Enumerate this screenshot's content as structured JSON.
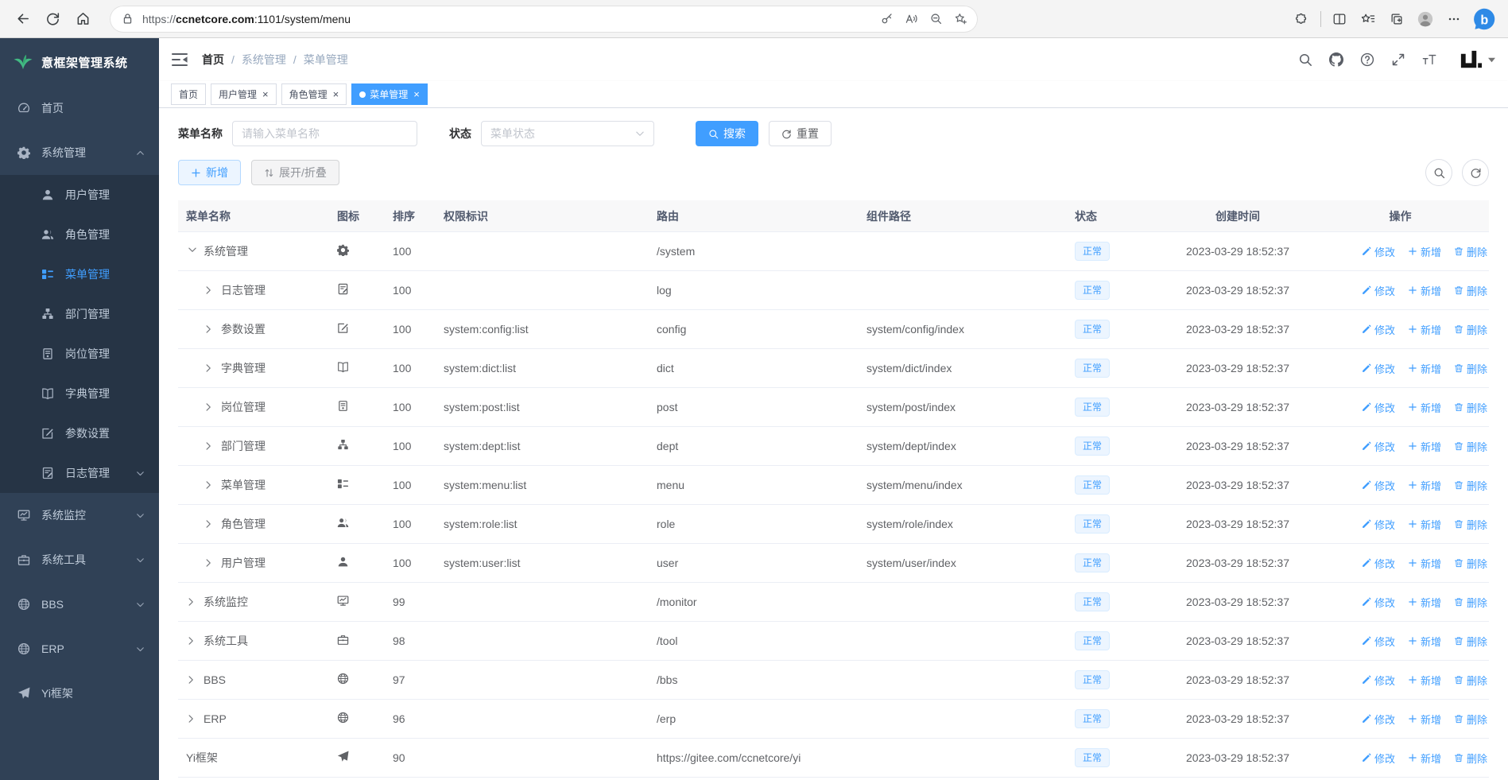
{
  "browser": {
    "url_scheme": "https://",
    "url_host": "ccnetcore.com",
    "url_path": ":1101/system/menu",
    "left_icons": [
      "back-icon",
      "refresh-icon",
      "home-icon"
    ],
    "lock_icon": "lock-icon",
    "url_icons": [
      "key-icon",
      "read-aloud-icon",
      "zoom-out-icon",
      "favorite-add-icon"
    ],
    "right_icons": [
      "extensions-icon",
      "divider",
      "split-screen-icon",
      "favorites-icon",
      "collections-icon",
      "profile-avatar",
      "more-icon"
    ],
    "corner_icon": "bing-icon"
  },
  "sidebar": {
    "logo_icon": "leaf-logo",
    "logo_title": "意框架管理系统",
    "items": [
      {
        "label": "首页",
        "icon": "dashboard-icon",
        "level": "root"
      },
      {
        "label": "系统管理",
        "icon": "gear-icon",
        "level": "root",
        "chevron": "up"
      },
      {
        "label": "用户管理",
        "icon": "user-icon",
        "level": "sub"
      },
      {
        "label": "角色管理",
        "icon": "users-icon",
        "level": "sub"
      },
      {
        "label": "菜单管理",
        "icon": "menu-list-icon",
        "level": "sub",
        "active": true
      },
      {
        "label": "部门管理",
        "icon": "tree-icon",
        "level": "sub"
      },
      {
        "label": "岗位管理",
        "icon": "post-icon",
        "level": "sub"
      },
      {
        "label": "字典管理",
        "icon": "dict-icon",
        "level": "sub"
      },
      {
        "label": "参数设置",
        "icon": "edit-icon",
        "level": "sub"
      },
      {
        "label": "日志管理",
        "icon": "log-icon",
        "level": "sub",
        "chevron": "down"
      },
      {
        "label": "系统监控",
        "icon": "monitor-icon",
        "level": "root",
        "chevron": "down"
      },
      {
        "label": "系统工具",
        "icon": "tool-icon",
        "level": "root",
        "chevron": "down"
      },
      {
        "label": "BBS",
        "icon": "globe-icon",
        "level": "root",
        "chevron": "down"
      },
      {
        "label": "ERP",
        "icon": "globe-icon",
        "level": "root",
        "chevron": "down"
      },
      {
        "label": "Yi框架",
        "icon": "send-icon",
        "level": "root"
      }
    ]
  },
  "navbar": {
    "breadcrumb": [
      "首页",
      "系统管理",
      "菜单管理"
    ],
    "separator": "/",
    "icons": [
      "search-icon",
      "github-icon",
      "question-icon",
      "fullscreen-icon",
      "font-size-icon"
    ],
    "logo_icon": "yi-logo"
  },
  "tabs": [
    {
      "label": "首页",
      "closable": false,
      "active": false
    },
    {
      "label": "用户管理",
      "closable": true,
      "active": false
    },
    {
      "label": "角色管理",
      "closable": true,
      "active": false
    },
    {
      "label": "菜单管理",
      "closable": true,
      "active": true
    }
  ],
  "filters": {
    "name_label": "菜单名称",
    "name_placeholder": "请输入菜单名称",
    "status_label": "状态",
    "status_placeholder": "菜单状态",
    "search_label": "搜索",
    "reset_label": "重置"
  },
  "toolbar": {
    "add_label": "新增",
    "expand_label": "展开/折叠"
  },
  "table": {
    "headers": [
      "菜单名称",
      "图标",
      "排序",
      "权限标识",
      "路由",
      "组件路径",
      "状态",
      "创建时间",
      "操作"
    ],
    "actions": [
      {
        "label": "修改",
        "icon": "edit-action-icon"
      },
      {
        "label": "新增",
        "icon": "plus-action-icon"
      },
      {
        "label": "删除",
        "icon": "delete-action-icon"
      }
    ],
    "rows": [
      {
        "name": "系统管理",
        "icon": "gear-icon",
        "indent": 0,
        "expand": "open",
        "sort": "100",
        "perms": "",
        "path": "/system",
        "component": "",
        "status": "正常",
        "time": "2023-03-29 18:52:37"
      },
      {
        "name": "日志管理",
        "icon": "log-icon",
        "indent": 1,
        "expand": "closed",
        "sort": "100",
        "perms": "",
        "path": "log",
        "component": "",
        "status": "正常",
        "time": "2023-03-29 18:52:37"
      },
      {
        "name": "参数设置",
        "icon": "edit-icon",
        "indent": 1,
        "expand": "closed",
        "sort": "100",
        "perms": "system:config:list",
        "path": "config",
        "component": "system/config/index",
        "status": "正常",
        "time": "2023-03-29 18:52:37"
      },
      {
        "name": "字典管理",
        "icon": "dict-icon",
        "indent": 1,
        "expand": "closed",
        "sort": "100",
        "perms": "system:dict:list",
        "path": "dict",
        "component": "system/dict/index",
        "status": "正常",
        "time": "2023-03-29 18:52:37"
      },
      {
        "name": "岗位管理",
        "icon": "post-icon",
        "indent": 1,
        "expand": "closed",
        "sort": "100",
        "perms": "system:post:list",
        "path": "post",
        "component": "system/post/index",
        "status": "正常",
        "time": "2023-03-29 18:52:37"
      },
      {
        "name": "部门管理",
        "icon": "tree-icon",
        "indent": 1,
        "expand": "closed",
        "sort": "100",
        "perms": "system:dept:list",
        "path": "dept",
        "component": "system/dept/index",
        "status": "正常",
        "time": "2023-03-29 18:52:37"
      },
      {
        "name": "菜单管理",
        "icon": "menu-list-icon",
        "indent": 1,
        "expand": "closed",
        "sort": "100",
        "perms": "system:menu:list",
        "path": "menu",
        "component": "system/menu/index",
        "status": "正常",
        "time": "2023-03-29 18:52:37"
      },
      {
        "name": "角色管理",
        "icon": "users-icon",
        "indent": 1,
        "expand": "closed",
        "sort": "100",
        "perms": "system:role:list",
        "path": "role",
        "component": "system/role/index",
        "status": "正常",
        "time": "2023-03-29 18:52:37"
      },
      {
        "name": "用户管理",
        "icon": "user-icon",
        "indent": 1,
        "expand": "closed",
        "sort": "100",
        "perms": "system:user:list",
        "path": "user",
        "component": "system/user/index",
        "status": "正常",
        "time": "2023-03-29 18:52:37"
      },
      {
        "name": "系统监控",
        "icon": "monitor-icon",
        "indent": 0,
        "expand": "closed",
        "sort": "99",
        "perms": "",
        "path": "/monitor",
        "component": "",
        "status": "正常",
        "time": "2023-03-29 18:52:37"
      },
      {
        "name": "系统工具",
        "icon": "tool-icon",
        "indent": 0,
        "expand": "closed",
        "sort": "98",
        "perms": "",
        "path": "/tool",
        "component": "",
        "status": "正常",
        "time": "2023-03-29 18:52:37"
      },
      {
        "name": "BBS",
        "icon": "globe-icon",
        "indent": 0,
        "expand": "closed",
        "sort": "97",
        "perms": "",
        "path": "/bbs",
        "component": "",
        "status": "正常",
        "time": "2023-03-29 18:52:37"
      },
      {
        "name": "ERP",
        "icon": "globe-icon",
        "indent": 0,
        "expand": "closed",
        "sort": "96",
        "perms": "",
        "path": "/erp",
        "component": "",
        "status": "正常",
        "time": "2023-03-29 18:52:37"
      },
      {
        "name": "Yi框架",
        "icon": "send-icon",
        "indent": 0,
        "expand": "none",
        "sort": "90",
        "perms": "",
        "path": "https://gitee.com/ccnetcore/yi",
        "component": "",
        "status": "正常",
        "time": "2023-03-29 18:52:37"
      }
    ]
  },
  "colors": {
    "accent": "#409eff",
    "sidebar_bg": "#304156",
    "submenu_bg": "#263445",
    "sidebar_text": "#bfcbd9",
    "tag_bg": "#ecf5ff",
    "tag_border": "#d9ecff",
    "table_header_bg": "#f8f8f9",
    "logo_green": "#42b983"
  }
}
